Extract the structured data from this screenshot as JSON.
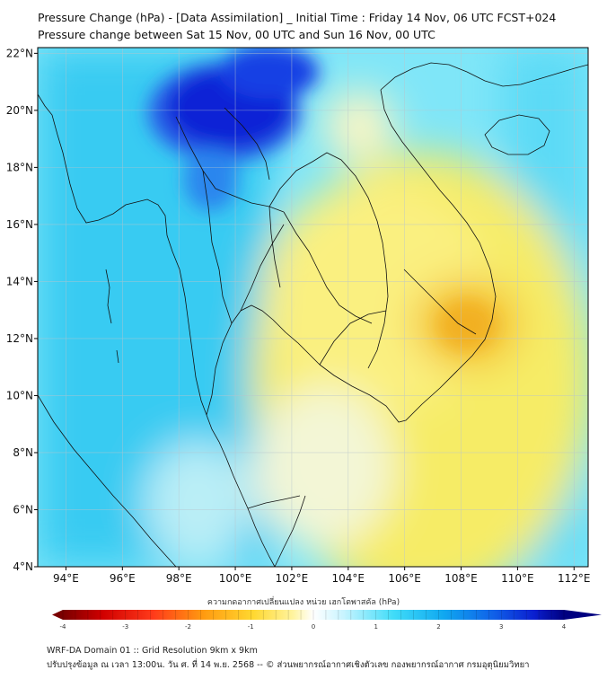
{
  "header": {
    "title": "Pressure Change (hPa) - [Data Assimilation] _ Initial Time : Friday 14 Nov, 06 UTC FCST+024",
    "subtitle": "Pressure change between Sat 15 Nov, 00 UTC and Sun 16 Nov, 00 UTC"
  },
  "map": {
    "region": "Thailand and Indochina",
    "lon_range": [
      93,
      112.5
    ],
    "lat_range": [
      4,
      22.2
    ],
    "lon_ticks": [
      "94°E",
      "96°E",
      "98°E",
      "100°E",
      "102°E",
      "104°E",
      "106°E",
      "108°E",
      "110°E",
      "112°E"
    ],
    "lat_ticks": [
      "22°N",
      "20°N",
      "18°N",
      "16°N",
      "14°N",
      "12°N",
      "10°N",
      "8°N",
      "6°N",
      "4°N"
    ],
    "field": "pressure change (hPa)",
    "features": [
      {
        "name": "strong pressure rise",
        "lon": 99.5,
        "lat": 20.2,
        "value": 4.0
      },
      {
        "name": "pressure fall",
        "lon": 108.0,
        "lat": 12.5,
        "value": -1.8
      }
    ]
  },
  "colorbar": {
    "title": "ความกดอากาศเปลี่ยนแปลง หน่วย เฮกโตพาสคัล (hPa)",
    "min": -4,
    "max": 4,
    "ticks": [
      "-4",
      "-3",
      "-2",
      "-1",
      "0",
      "1",
      "2",
      "3",
      "4"
    ]
  },
  "footer": {
    "line1": "WRF-DA Domain 01 :: Grid Resolution 9km x 9km",
    "line2": "ปรับปรุงข้อมูล ณ เวลา 13:00น. วัน ศ. ที่ 14 พ.ย. 2568 -- © ส่วนพยากรณ์อากาศเชิงตัวเลข กองพยากรณ์อากาศ กรมอุตุนิยมวิทยา"
  },
  "colors": {
    "blue_high": "#0a1fd8",
    "cyan": "#22d4f4",
    "yellow": "#f8ea60",
    "orange": "#f5b820",
    "dark_red": "#7a0000",
    "dark_blue": "#000080"
  }
}
